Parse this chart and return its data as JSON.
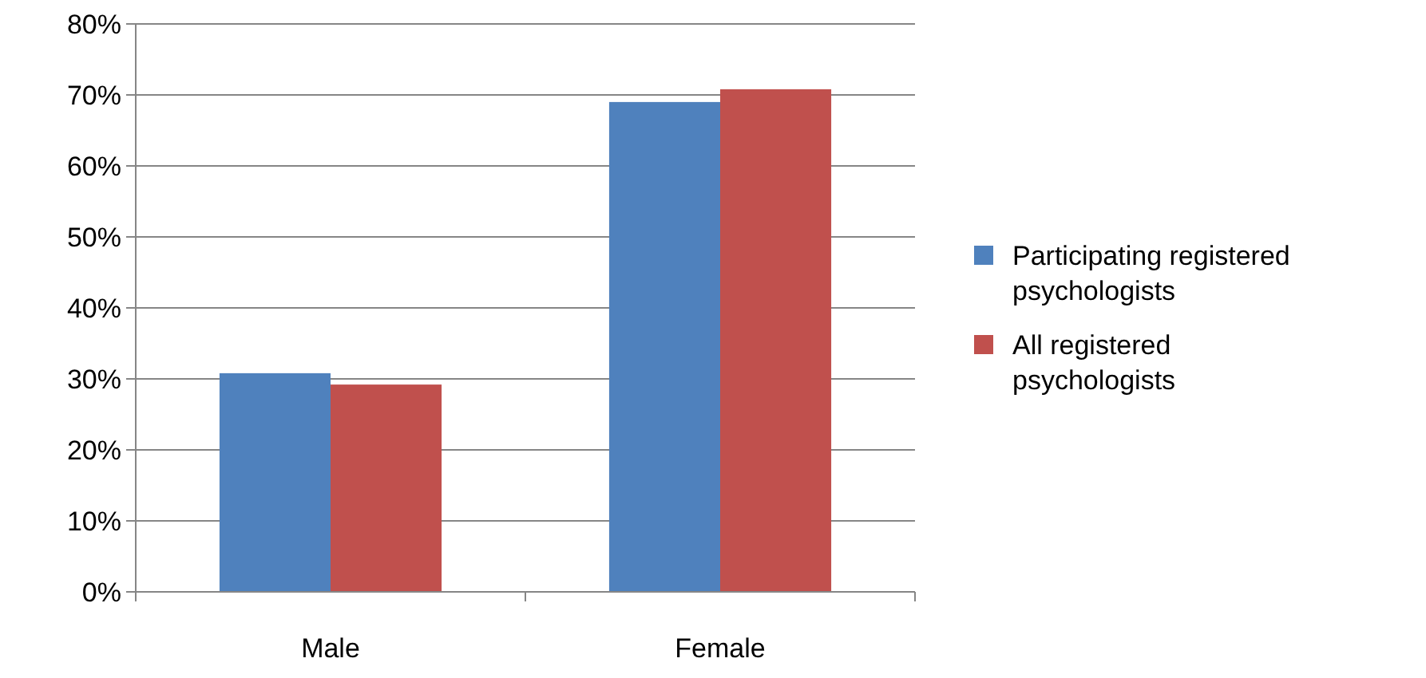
{
  "chart_data": {
    "type": "bar",
    "categories": [
      "Male",
      "Female"
    ],
    "series": [
      {
        "name": "Participating registered psychologists",
        "color": "#4f81bd",
        "values": [
          30.8,
          69.0
        ]
      },
      {
        "name": "All registered psychologists",
        "color": "#c0504d",
        "values": [
          29.2,
          70.8
        ]
      }
    ],
    "ylim": [
      0,
      80
    ],
    "yticks": [
      {
        "value": 0,
        "label": "0%"
      },
      {
        "value": 10,
        "label": "10%"
      },
      {
        "value": 20,
        "label": "20%"
      },
      {
        "value": 30,
        "label": "30%"
      },
      {
        "value": 40,
        "label": "40%"
      },
      {
        "value": 50,
        "label": "50%"
      },
      {
        "value": 60,
        "label": "60%"
      },
      {
        "value": 70,
        "label": "70%"
      },
      {
        "value": 80,
        "label": "80%"
      }
    ],
    "grid": "y",
    "legend": "right"
  }
}
